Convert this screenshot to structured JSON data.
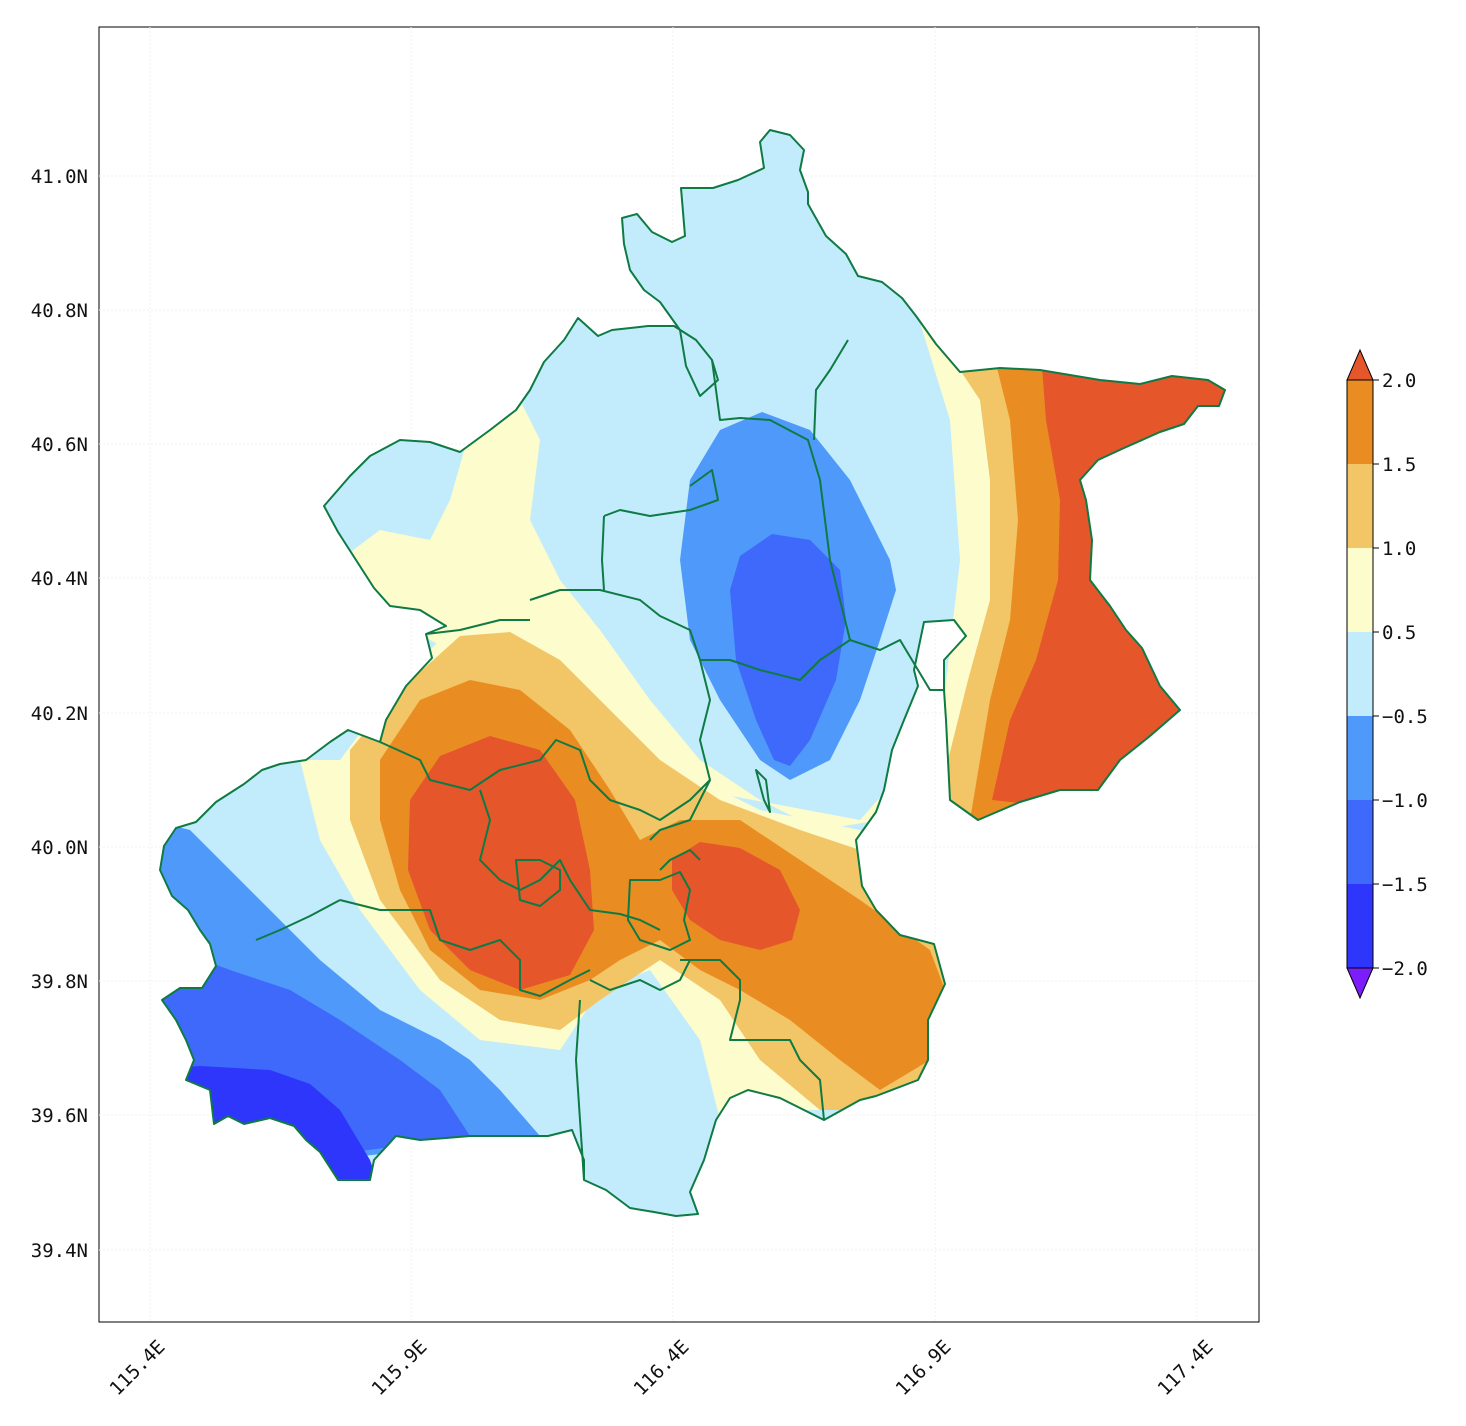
{
  "map": {
    "x_ticks": [
      "115.4E",
      "115.9E",
      "116.4E",
      "116.9E",
      "117.4E"
    ],
    "y_ticks": [
      "41.0N",
      "40.8N",
      "40.6N",
      "40.4N",
      "40.2N",
      "40.0N",
      "39.8N",
      "39.6N",
      "39.4N"
    ],
    "boundary_color": "#0e7a44"
  },
  "colorbar": {
    "labels": [
      "2.0",
      "1.5",
      "1.0",
      "0.5",
      "−0.5",
      "−1.0",
      "−1.5",
      "−2.0"
    ],
    "colors_top_to_bottom": [
      "#e6562b",
      "#e98d22",
      "#f2c566",
      "#fdfccc",
      "#c2ecfb",
      "#4f99fb",
      "#3e69fb",
      "#2e36fb",
      "#7b1efb"
    ]
  }
}
